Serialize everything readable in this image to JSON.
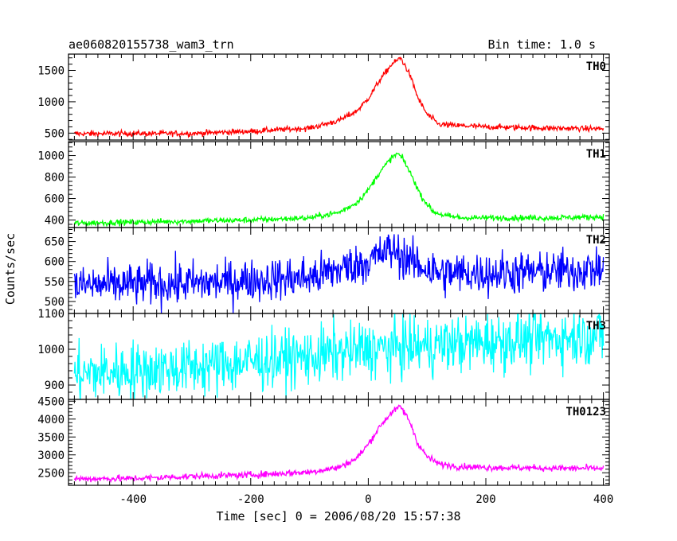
{
  "chart_data": {
    "type": "line",
    "title": "ae060820155738_wam3_trn",
    "subtitle": "Bin time: 1.0 s",
    "xlabel": "Time [sec] 0 = 2006/08/20 15:57:38",
    "ylabel": "Counts/sec",
    "xlim": [
      -510,
      410
    ],
    "x_ticks": [
      -400,
      -200,
      0,
      200,
      400
    ],
    "grid": false,
    "panels": [
      {
        "name": "TH0",
        "color": "#ff0000",
        "ylim": [
          390,
          1760
        ],
        "y_ticks": [
          500,
          1000,
          1500
        ],
        "x": [
          -500,
          -300,
          -200,
          -100,
          -50,
          -20,
          0,
          20,
          40,
          55,
          70,
          85,
          100,
          120,
          150,
          200,
          300,
          400
        ],
        "y": [
          490,
          495,
          530,
          580,
          700,
          850,
          1050,
          1350,
          1600,
          1700,
          1450,
          1050,
          800,
          640,
          620,
          600,
          580,
          570
        ],
        "noise": 25
      },
      {
        "name": "TH1",
        "color": "#00ff00",
        "ylim": [
          330,
          1130
        ],
        "y_ticks": [
          400,
          600,
          800,
          1000
        ],
        "x": [
          -500,
          -300,
          -200,
          -100,
          -50,
          -20,
          0,
          20,
          40,
          50,
          60,
          75,
          90,
          110,
          130,
          160,
          200,
          300,
          400
        ],
        "y": [
          370,
          390,
          400,
          420,
          470,
          560,
          680,
          850,
          980,
          1020,
          960,
          800,
          620,
          480,
          440,
          420,
          420,
          420,
          430
        ],
        "noise": 15
      },
      {
        "name": "TH2",
        "color": "#0000ff",
        "ylim": [
          470,
          685
        ],
        "y_ticks": [
          500,
          550,
          600,
          650
        ],
        "x": [
          -500,
          -300,
          -100,
          -50,
          0,
          40,
          80,
          120,
          200,
          300,
          400
        ],
        "y": [
          540,
          545,
          560,
          580,
          600,
          630,
          595,
          570,
          570,
          575,
          580
        ],
        "noise": 30
      },
      {
        "name": "TH3",
        "color": "#00ffff",
        "ylim": [
          860,
          1100
        ],
        "y_ticks": [
          900,
          1000,
          1100
        ],
        "x": [
          -500,
          -300,
          -100,
          0,
          100,
          200,
          300,
          400
        ],
        "y": [
          930,
          950,
          980,
          1000,
          1010,
          1020,
          1030,
          1040
        ],
        "noise": 45
      },
      {
        "name": "TH0123",
        "color": "#ff00ff",
        "ylim": [
          2150,
          4550
        ],
        "y_ticks": [
          2500,
          3000,
          3500,
          4000,
          4500
        ],
        "x": [
          -500,
          -400,
          -300,
          -200,
          -100,
          -50,
          -20,
          0,
          20,
          40,
          55,
          70,
          85,
          100,
          120,
          150,
          200,
          300,
          400
        ],
        "y": [
          2330,
          2340,
          2400,
          2440,
          2520,
          2650,
          2900,
          3300,
          3800,
          4200,
          4350,
          3950,
          3300,
          2950,
          2750,
          2680,
          2650,
          2630,
          2620
        ],
        "noise": 50
      }
    ]
  }
}
